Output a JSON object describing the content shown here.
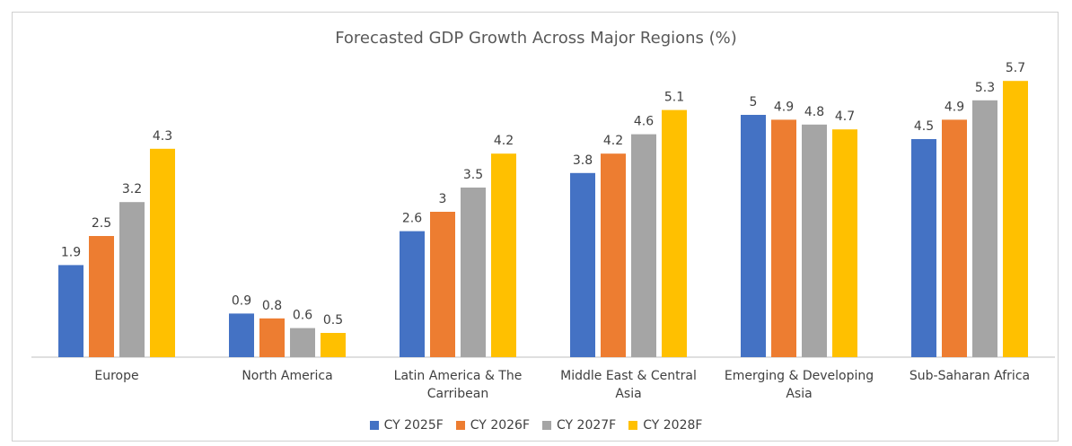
{
  "chart_data": {
    "type": "bar",
    "title": "Forecasted GDP Growth Across Major Regions (%)",
    "categories": [
      "Europe",
      "North America",
      "Latin America & The Carribean",
      "Middle East & Central Asia",
      "Emerging & Developing Asia",
      "Sub-Saharan Africa"
    ],
    "series": [
      {
        "name": "CY 2025F",
        "color": "#4472c4",
        "values": [
          1.9,
          0.9,
          2.6,
          3.8,
          5,
          4.5
        ]
      },
      {
        "name": "CY 2026F",
        "color": "#ed7d31",
        "values": [
          2.5,
          0.8,
          3,
          4.2,
          4.9,
          4.9
        ]
      },
      {
        "name": "CY 2027F",
        "color": "#a5a5a5",
        "values": [
          3.2,
          0.6,
          3.5,
          4.6,
          4.8,
          5.3
        ]
      },
      {
        "name": "CY 2028F",
        "color": "#ffc000",
        "values": [
          4.3,
          0.5,
          4.2,
          5.1,
          4.7,
          5.7
        ]
      }
    ],
    "legend": "bottom"
  }
}
